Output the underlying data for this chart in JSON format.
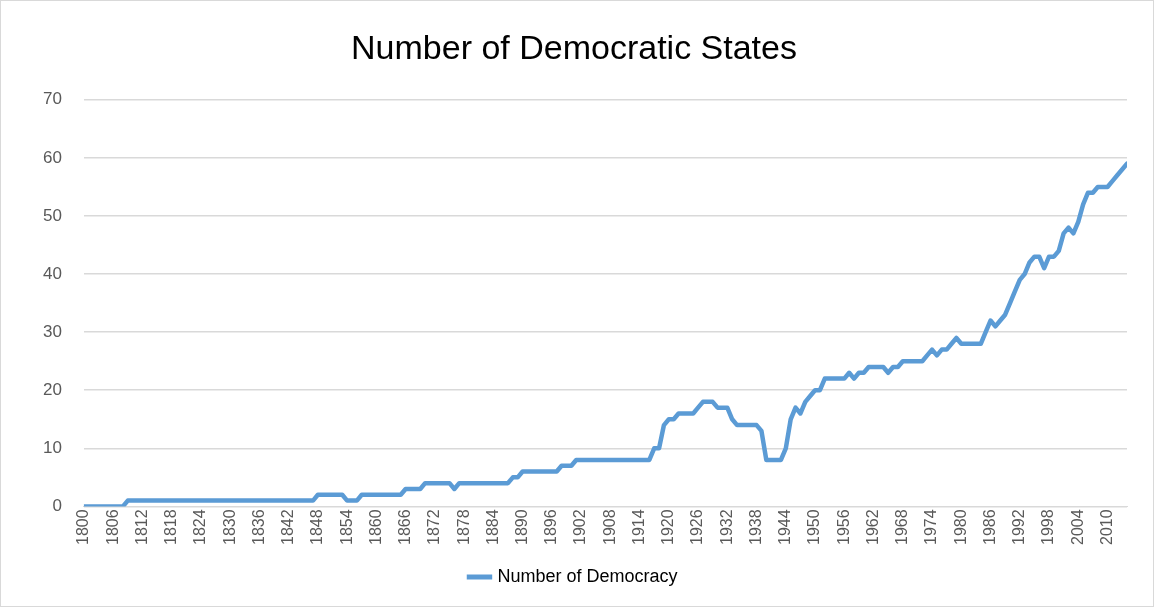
{
  "chart_data": {
    "type": "line",
    "title": "Number of Democratic States",
    "x": [
      1800,
      1808,
      1809,
      1847,
      1848,
      1853,
      1854,
      1856,
      1857,
      1865,
      1866,
      1869,
      1870,
      1875,
      1876,
      1877,
      1887,
      1888,
      1889,
      1890,
      1897,
      1898,
      1900,
      1901,
      1916,
      1917,
      1918,
      1919,
      1920,
      1921,
      1922,
      1925,
      1926,
      1927,
      1929,
      1930,
      1932,
      1933,
      1934,
      1938,
      1939,
      1940,
      1943,
      1944,
      1945,
      1946,
      1947,
      1948,
      1949,
      1950,
      1951,
      1952,
      1956,
      1957,
      1958,
      1959,
      1960,
      1961,
      1964,
      1965,
      1966,
      1967,
      1968,
      1972,
      1973,
      1974,
      1975,
      1976,
      1977,
      1978,
      1979,
      1980,
      1984,
      1985,
      1986,
      1987,
      1988,
      1989,
      1990,
      1991,
      1992,
      1993,
      1994,
      1995,
      1996,
      1997,
      1998,
      1999,
      2000,
      2001,
      2002,
      2003,
      2004,
      2005,
      2006,
      2007,
      2008,
      2010,
      2011,
      2012,
      2013,
      2014
    ],
    "series": [
      {
        "name": "Number of Democracy",
        "color": "#5b9bd5",
        "values": [
          0,
          0,
          1,
          1,
          2,
          2,
          1,
          1,
          2,
          2,
          3,
          3,
          4,
          4,
          3,
          4,
          4,
          5,
          5,
          6,
          6,
          7,
          7,
          8,
          8,
          10,
          10,
          14,
          15,
          15,
          16,
          16,
          17,
          18,
          18,
          17,
          17,
          15,
          14,
          14,
          13,
          8,
          8,
          10,
          15,
          17,
          16,
          18,
          19,
          20,
          20,
          22,
          22,
          23,
          22,
          23,
          23,
          24,
          24,
          23,
          24,
          24,
          25,
          25,
          26,
          27,
          26,
          27,
          27,
          28,
          29,
          28,
          28,
          30,
          32,
          31,
          32,
          33,
          35,
          37,
          39,
          40,
          42,
          43,
          43,
          41,
          43,
          43,
          44,
          47,
          48,
          47,
          49,
          52,
          54,
          54,
          55,
          55,
          56,
          57,
          58,
          59
        ]
      }
    ],
    "xlim": [
      1800,
      2014
    ],
    "xticks": [
      1800,
      1806,
      1812,
      1818,
      1824,
      1830,
      1836,
      1842,
      1848,
      1854,
      1860,
      1866,
      1872,
      1878,
      1884,
      1890,
      1896,
      1902,
      1908,
      1914,
      1920,
      1926,
      1932,
      1938,
      1944,
      1950,
      1956,
      1962,
      1968,
      1974,
      1980,
      1986,
      1992,
      1998,
      2004,
      2010
    ],
    "ylim": [
      0,
      70
    ],
    "yticks": [
      0,
      10,
      20,
      30,
      40,
      50,
      60,
      70
    ],
    "grid": "y",
    "legend": "bottom",
    "marker": "none",
    "line_style": "solid"
  }
}
